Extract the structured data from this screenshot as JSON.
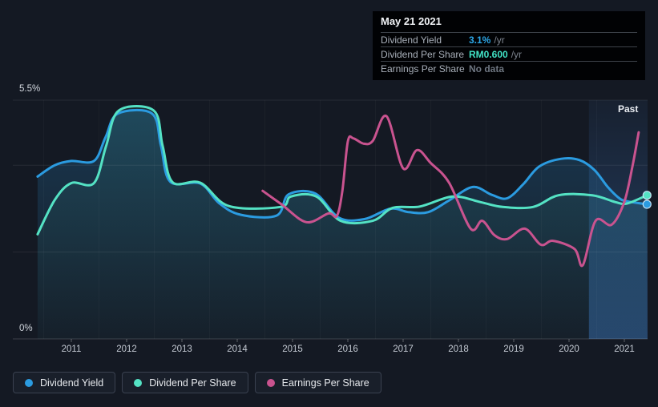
{
  "past_label": "Past",
  "tooltip": {
    "date": "May 21 2021",
    "rows": [
      {
        "label": "Dividend Yield",
        "value": "3.1%",
        "suffix": "/yr",
        "value_color": "#2da8e8"
      },
      {
        "label": "Dividend Per Share",
        "value": "RM0.600",
        "suffix": "/yr",
        "value_color": "#41e2c5"
      },
      {
        "label": "Earnings Per Share",
        "value": "No data",
        "suffix": "",
        "value_color": "#6e7681"
      }
    ]
  },
  "legend": [
    {
      "label": "Dividend Yield",
      "color": "#2b9be0"
    },
    {
      "label": "Dividend Per Share",
      "color": "#54e2c4"
    },
    {
      "label": "Earnings Per Share",
      "color": "#c9538f"
    }
  ],
  "chart_data": {
    "type": "line",
    "title": "Dividend history",
    "x_ticks": [
      "2011",
      "2012",
      "2013",
      "2014",
      "2015",
      "2016",
      "2017",
      "2018",
      "2019",
      "2020",
      "2021"
    ],
    "y_axis": {
      "top_label": "5.5%",
      "bottom_label": "0%",
      "ylim": [
        0,
        5.5
      ],
      "unit": "%",
      "gridlines_pct": [
        5.5,
        4,
        2
      ],
      "baseline_pct": 0
    },
    "past_band_start": 2020.36,
    "legend_position": "bottom-left",
    "series": [
      {
        "name": "Dividend Yield",
        "color": "#2b9be0",
        "area": true,
        "end_dot": true,
        "points": [
          [
            2010.39,
            3.74
          ],
          [
            2010.7,
            4.0
          ],
          [
            2011.0,
            4.1
          ],
          [
            2011.41,
            4.1
          ],
          [
            2011.62,
            4.65
          ],
          [
            2011.84,
            5.19
          ],
          [
            2012.46,
            5.19
          ],
          [
            2012.62,
            4.45
          ],
          [
            2012.79,
            3.62
          ],
          [
            2013.33,
            3.58
          ],
          [
            2013.67,
            3.13
          ],
          [
            2014.06,
            2.86
          ],
          [
            2014.71,
            2.84
          ],
          [
            2014.93,
            3.33
          ],
          [
            2015.41,
            3.35
          ],
          [
            2015.84,
            2.79
          ],
          [
            2016.3,
            2.76
          ],
          [
            2016.77,
            3.0
          ],
          [
            2017.1,
            2.92
          ],
          [
            2017.45,
            2.92
          ],
          [
            2017.83,
            3.19
          ],
          [
            2018.26,
            3.5
          ],
          [
            2018.6,
            3.32
          ],
          [
            2018.88,
            3.24
          ],
          [
            2019.17,
            3.56
          ],
          [
            2019.46,
            3.97
          ],
          [
            2019.86,
            4.15
          ],
          [
            2020.19,
            4.12
          ],
          [
            2020.46,
            3.89
          ],
          [
            2020.7,
            3.5
          ],
          [
            2020.91,
            3.24
          ],
          [
            2021.05,
            3.17
          ],
          [
            2021.41,
            3.1
          ]
        ]
      },
      {
        "name": "Dividend Per Share",
        "color": "#54e2c4",
        "area": true,
        "end_dot": true,
        "points": [
          [
            2010.39,
            2.41
          ],
          [
            2010.7,
            3.2
          ],
          [
            2011.0,
            3.59
          ],
          [
            2011.41,
            3.59
          ],
          [
            2011.63,
            4.45
          ],
          [
            2011.86,
            5.26
          ],
          [
            2012.49,
            5.26
          ],
          [
            2012.65,
            4.45
          ],
          [
            2012.83,
            3.61
          ],
          [
            2013.33,
            3.6
          ],
          [
            2013.85,
            3.06
          ],
          [
            2014.78,
            3.04
          ],
          [
            2014.97,
            3.28
          ],
          [
            2015.43,
            3.28
          ],
          [
            2015.87,
            2.72
          ],
          [
            2016.45,
            2.72
          ],
          [
            2016.81,
            3.02
          ],
          [
            2017.3,
            3.05
          ],
          [
            2017.9,
            3.28
          ],
          [
            2018.4,
            3.15
          ],
          [
            2018.8,
            3.04
          ],
          [
            2019.35,
            3.04
          ],
          [
            2019.81,
            3.31
          ],
          [
            2020.42,
            3.31
          ],
          [
            2020.84,
            3.15
          ],
          [
            2021.05,
            3.12
          ],
          [
            2021.41,
            3.31
          ]
        ]
      },
      {
        "name": "Earnings Per Share",
        "color": "#c9538f",
        "area": false,
        "end_dot": false,
        "points": [
          [
            2014.46,
            3.41
          ],
          [
            2014.8,
            3.1
          ],
          [
            2015.25,
            2.69
          ],
          [
            2015.65,
            2.89
          ],
          [
            2015.8,
            2.83
          ],
          [
            2015.9,
            3.4
          ],
          [
            2016.0,
            4.55
          ],
          [
            2016.1,
            4.62
          ],
          [
            2016.28,
            4.5
          ],
          [
            2016.45,
            4.56
          ],
          [
            2016.7,
            5.13
          ],
          [
            2017.0,
            3.93
          ],
          [
            2017.25,
            4.35
          ],
          [
            2017.5,
            4.05
          ],
          [
            2017.83,
            3.6
          ],
          [
            2018.22,
            2.54
          ],
          [
            2018.43,
            2.72
          ],
          [
            2018.65,
            2.39
          ],
          [
            2018.88,
            2.3
          ],
          [
            2019.2,
            2.54
          ],
          [
            2019.49,
            2.17
          ],
          [
            2019.71,
            2.26
          ],
          [
            2020.1,
            2.07
          ],
          [
            2020.25,
            1.7
          ],
          [
            2020.48,
            2.72
          ],
          [
            2020.77,
            2.63
          ],
          [
            2021.0,
            3.16
          ],
          [
            2021.15,
            4.0
          ],
          [
            2021.26,
            4.76
          ]
        ]
      }
    ]
  }
}
